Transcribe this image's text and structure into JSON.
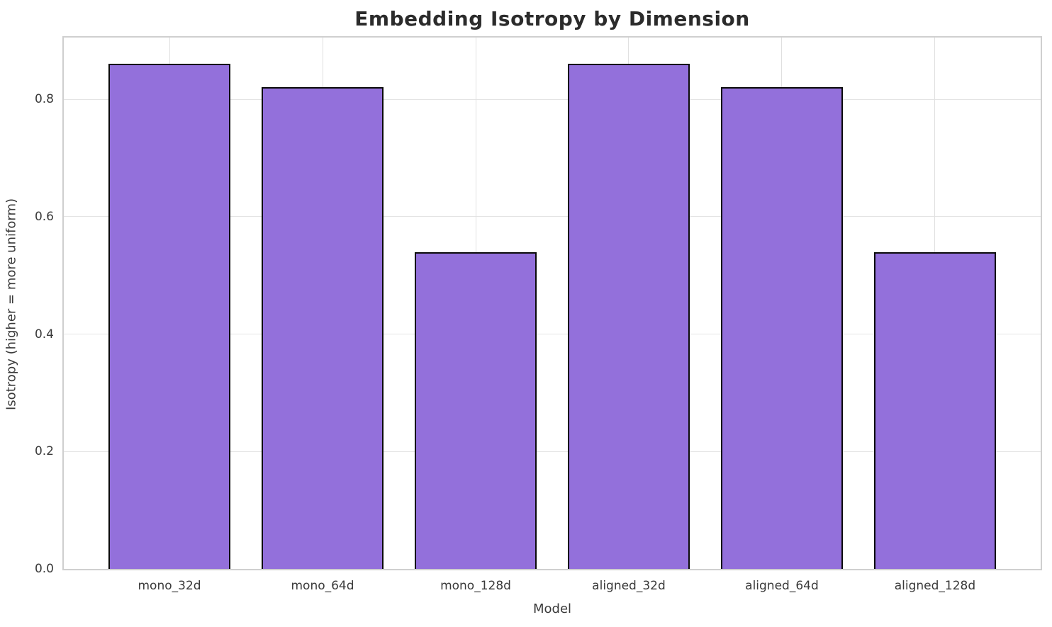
{
  "chart_data": {
    "type": "bar",
    "title": "Embedding Isotropy by Dimension",
    "xlabel": "Model",
    "ylabel": "Isotropy (higher = more uniform)",
    "categories": [
      "mono_32d",
      "mono_64d",
      "mono_128d",
      "aligned_32d",
      "aligned_64d",
      "aligned_128d"
    ],
    "values": [
      0.86,
      0.82,
      0.54,
      0.86,
      0.82,
      0.54
    ],
    "ylim": [
      0,
      0.905
    ],
    "xlim": [
      -0.69,
      5.69
    ],
    "yticks": [
      0.0,
      0.2,
      0.4,
      0.6,
      0.8
    ],
    "ytick_labels": [
      "0.0",
      "0.2",
      "0.4",
      "0.6",
      "0.8"
    ],
    "bar_width_fraction": 0.8,
    "grid": true,
    "legend": "none",
    "colors": {
      "bar_fill": "#9370DB",
      "bar_edge": "#0a0a0a",
      "grid_h": "#e4e4e4",
      "grid_v": "#e0e0e0",
      "spine": "#cfcfcf",
      "tick_text": "#3a3a3a",
      "title_text": "#2b2b2b",
      "background": "#ffffff"
    }
  }
}
